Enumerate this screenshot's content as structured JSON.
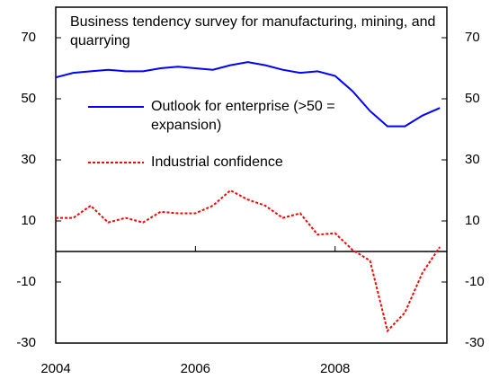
{
  "chart_data": {
    "type": "line",
    "title": "Business tendency survey for manufacturing, mining, and quarrying",
    "x": [
      2004,
      2004.25,
      2004.5,
      2004.75,
      2005,
      2005.25,
      2005.5,
      2005.75,
      2006,
      2006.25,
      2006.5,
      2006.75,
      2007,
      2007.25,
      2007.5,
      2007.75,
      2008,
      2008.25,
      2008.5,
      2008.75,
      2009,
      2009.25,
      2009.5
    ],
    "series": [
      {
        "name": "Outlook for enterprise (>50 = expansion)",
        "color": "#0000ff",
        "values": [
          57,
          58.5,
          59,
          59.5,
          59,
          59,
          60,
          60.5,
          60,
          59.5,
          61,
          62,
          61,
          59.5,
          58.5,
          59,
          57.5,
          52.5,
          46,
          41,
          41,
          44.5,
          47
        ]
      },
      {
        "name": "Industrial confidence",
        "color": "#ff0000",
        "values": [
          11,
          11,
          15,
          9.5,
          11,
          9.5,
          13,
          12.5,
          12.5,
          15,
          20,
          17,
          15,
          11,
          12.5,
          5.5,
          6,
          0.5,
          -3,
          -26,
          -20,
          -7,
          1.5
        ]
      }
    ],
    "xlim": [
      2004,
      2009.6
    ],
    "xticks": [
      2004,
      2006,
      2008
    ],
    "ylim": [
      -30,
      80
    ],
    "yticks": [
      -30,
      -10,
      10,
      30,
      50,
      70
    ],
    "y2lim": [
      -30,
      80
    ],
    "y2ticks": [
      -30,
      -10,
      10,
      30,
      50,
      70
    ]
  }
}
